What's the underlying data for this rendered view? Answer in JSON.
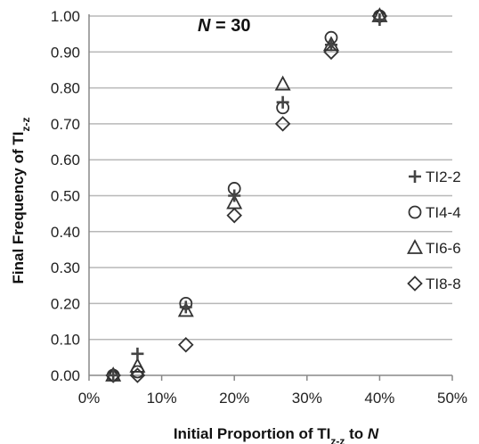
{
  "chart_data": {
    "type": "scatter",
    "annotation": {
      "var": "N",
      "text": " = 30"
    },
    "xlabel": {
      "pre": "Initial Proportion of TI",
      "sub": "z-z",
      "post": " to ",
      "var": "N"
    },
    "ylabel": {
      "pre": "Final Frequency of TI",
      "sub": "z-z"
    },
    "xlim": [
      0,
      50
    ],
    "ylim": [
      0,
      1.0
    ],
    "x_ticks": [
      "0%",
      "10%",
      "20%",
      "30%",
      "40%",
      "50%"
    ],
    "y_ticks": [
      "0.00",
      "0.10",
      "0.20",
      "0.30",
      "0.40",
      "0.50",
      "0.60",
      "0.70",
      "0.80",
      "0.90",
      "1.00"
    ],
    "grid": "horizontal",
    "legend_position": "right",
    "series": [
      {
        "name": "TI2-2",
        "marker": "plus",
        "points": [
          [
            3.33,
            0.0
          ],
          [
            6.67,
            0.06
          ],
          [
            13.33,
            0.19
          ],
          [
            20.0,
            0.5
          ],
          [
            26.67,
            0.76
          ],
          [
            33.33,
            0.92
          ],
          [
            40.0,
            0.99
          ]
        ]
      },
      {
        "name": "TI4-4",
        "marker": "circle",
        "points": [
          [
            3.33,
            0.0
          ],
          [
            6.67,
            0.01
          ],
          [
            13.33,
            0.2
          ],
          [
            20.0,
            0.52
          ],
          [
            26.67,
            0.745
          ],
          [
            33.33,
            0.94
          ],
          [
            40.0,
            1.0
          ]
        ]
      },
      {
        "name": "TI6-6",
        "marker": "triangle",
        "points": [
          [
            3.33,
            0.0
          ],
          [
            6.67,
            0.025
          ],
          [
            13.33,
            0.18
          ],
          [
            20.0,
            0.48
          ],
          [
            26.67,
            0.81
          ],
          [
            33.33,
            0.92
          ],
          [
            40.0,
            1.0
          ]
        ]
      },
      {
        "name": "TI8-8",
        "marker": "diamond",
        "points": [
          [
            3.33,
            0.0
          ],
          [
            6.67,
            0.0
          ],
          [
            13.33,
            0.085
          ],
          [
            20.0,
            0.445
          ],
          [
            26.67,
            0.7
          ],
          [
            33.33,
            0.9
          ],
          [
            40.0,
            1.0
          ]
        ]
      }
    ]
  }
}
